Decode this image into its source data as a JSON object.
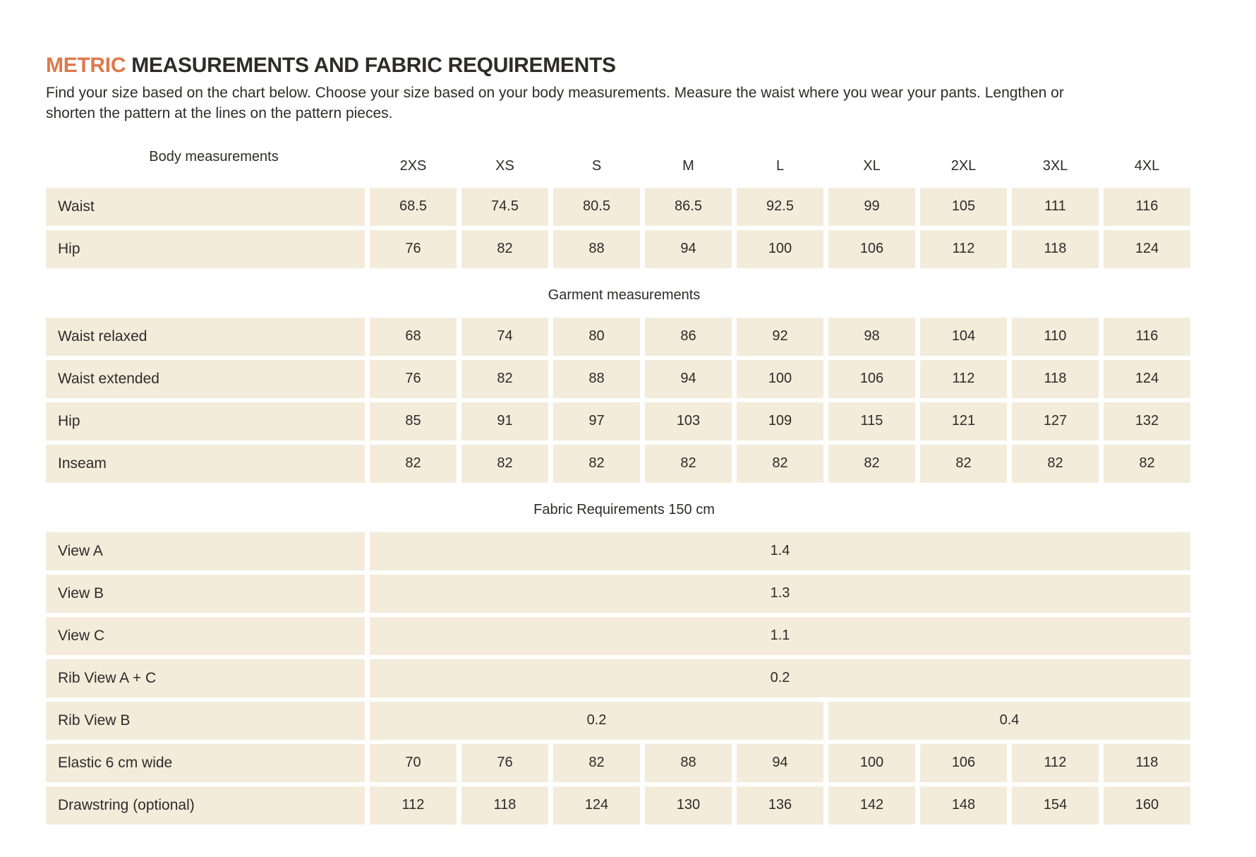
{
  "page": {
    "title_accent": "METRIC",
    "title_rest": " MEASUREMENTS AND FABRIC REQUIREMENTS",
    "intro": "Find your size based on the chart below. Choose your size based on your body measurements. Measure the waist where you wear your pants. Lengthen or shorten the pattern at the lines on the pattern pieces."
  },
  "colors": {
    "accent_orange": "#de7a4b",
    "cell_cream": "#f3ecdb",
    "text_dark": "#2d2c2a",
    "background": "#ffffff"
  },
  "table": {
    "sizes": [
      "2XS",
      "XS",
      "S",
      "M",
      "L",
      "XL",
      "2XL",
      "3XL",
      "4XL"
    ],
    "sections": [
      {
        "header": "Body measurements",
        "header_with_sizes": true,
        "rows": [
          {
            "label": "Waist",
            "values": [
              "68.5",
              "74.5",
              "80.5",
              "86.5",
              "92.5",
              "99",
              "105",
              "111",
              "116"
            ]
          },
          {
            "label": "Hip",
            "values": [
              "76",
              "82",
              "88",
              "94",
              "100",
              "106",
              "112",
              "118",
              "124"
            ]
          }
        ]
      },
      {
        "header": "Garment measurements",
        "header_with_sizes": false,
        "rows": [
          {
            "label": "Waist relaxed",
            "values": [
              "68",
              "74",
              "80",
              "86",
              "92",
              "98",
              "104",
              "110",
              "116"
            ]
          },
          {
            "label": "Waist extended",
            "values": [
              "76",
              "82",
              "88",
              "94",
              "100",
              "106",
              "112",
              "118",
              "124"
            ]
          },
          {
            "label": "Hip",
            "values": [
              "85",
              "91",
              "97",
              "103",
              "109",
              "115",
              "121",
              "127",
              "132"
            ]
          },
          {
            "label": "Inseam",
            "values": [
              "82",
              "82",
              "82",
              "82",
              "82",
              "82",
              "82",
              "82",
              "82"
            ]
          }
        ]
      },
      {
        "header": "Fabric Requirements 150 cm",
        "header_with_sizes": false,
        "rows": [
          {
            "label": "View A",
            "merged": [
              {
                "span": 9,
                "value": "1.4"
              }
            ]
          },
          {
            "label": "View B",
            "merged": [
              {
                "span": 9,
                "value": "1.3"
              }
            ]
          },
          {
            "label": "View C",
            "merged": [
              {
                "span": 9,
                "value": "1.1"
              }
            ]
          },
          {
            "label": "Rib View A + C",
            "merged": [
              {
                "span": 9,
                "value": "0.2"
              }
            ]
          },
          {
            "label": "Rib View B",
            "merged": [
              {
                "span": 5,
                "value": "0.2"
              },
              {
                "span": 4,
                "value": "0.4"
              }
            ]
          },
          {
            "label": "Elastic 6 cm wide",
            "values": [
              "70",
              "76",
              "82",
              "88",
              "94",
              "100",
              "106",
              "112",
              "118"
            ]
          },
          {
            "label": "Drawstring (optional)",
            "values": [
              "112",
              "118",
              "124",
              "130",
              "136",
              "142",
              "148",
              "154",
              "160"
            ]
          }
        ]
      }
    ]
  }
}
